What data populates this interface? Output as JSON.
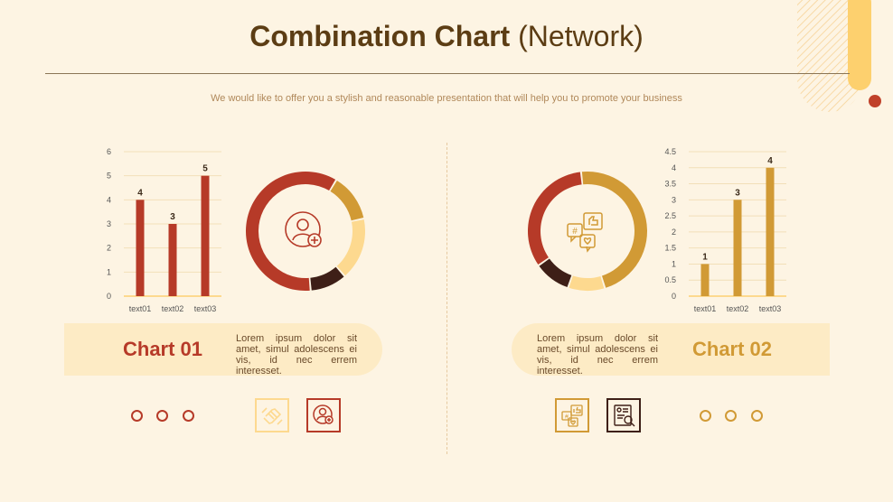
{
  "header": {
    "title_bold": "Combination Chart",
    "title_light": "(Network)",
    "subtitle": "We would like to offer you a stylish and reasonable presentation that will help you to promote your business"
  },
  "colors": {
    "red": "#b63a28",
    "gold": "#d19a35",
    "light_gold": "#fdd98f",
    "dark": "#3e1f17",
    "background": "#fdf4e3"
  },
  "panels": [
    {
      "title": "Chart 01",
      "text": "Lorem ipsum dolor sit amet, simul adolescens ei vis, id nec errem interesset."
    },
    {
      "title": "Chart 02",
      "text": "Lorem ipsum dolor sit amet, simul adolescens ei vis, id nec errem interesset."
    }
  ],
  "icons": {
    "donut1_center": "user-add-icon",
    "donut2_center": "social-media-icon",
    "sq1": "handshake-icon",
    "sq2": "user-add-icon",
    "sq3": "social-media-icon",
    "sq4": "document-search-icon"
  },
  "chart_data": [
    {
      "type": "bar",
      "categories": [
        "text01",
        "text02",
        "text03"
      ],
      "values": [
        4,
        3,
        5
      ],
      "ylim": [
        0,
        6
      ],
      "yticks": [
        "0",
        "1",
        "2",
        "3",
        "4",
        "5",
        "6"
      ],
      "data_labels": [
        "4",
        "3",
        "5"
      ],
      "grid": true,
      "color": "#b63a28"
    },
    {
      "type": "pie",
      "donut": true,
      "values": [
        60,
        13,
        17,
        10
      ],
      "colors": [
        "#b63a28",
        "#d19a35",
        "#fdd98f",
        "#3e1f17"
      ]
    },
    {
      "type": "pie",
      "donut": true,
      "values": [
        33,
        47,
        10,
        10
      ],
      "colors": [
        "#b63a28",
        "#d19a35",
        "#fdd98f",
        "#3e1f17"
      ]
    },
    {
      "type": "bar",
      "categories": [
        "text01",
        "text02",
        "text03"
      ],
      "values": [
        1,
        3,
        4
      ],
      "ylim": [
        0,
        4.5
      ],
      "yticks": [
        "0",
        "0.5",
        "1",
        "1.5",
        "2",
        "2.5",
        "3",
        "3.5",
        "4",
        "4.5"
      ],
      "data_labels": [
        "1",
        "3",
        "4"
      ],
      "grid": true,
      "color": "#d19a35"
    }
  ]
}
